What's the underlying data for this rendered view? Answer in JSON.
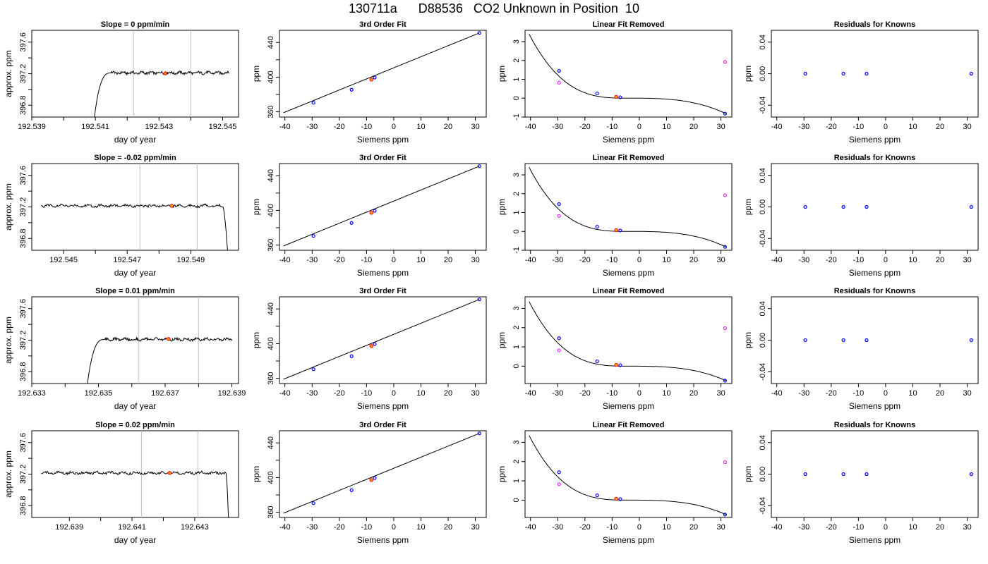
{
  "title": "130711a      D88536   CO2 Unknown in Position  10",
  "panel_titles": {
    "fit": "3rd Order Fit",
    "removed": "Linear Fit Removed",
    "residuals": "Residuals for Knowns"
  },
  "axis_labels": {
    "day_of_year": "day of year",
    "approx_ppm": "approx. ppm",
    "siemens_ppm": "Siemens ppm",
    "ppm": "ppm"
  },
  "colors": {
    "trace": "#000000",
    "gridline": "#bebebe",
    "standard_point": "#0000ff",
    "unknown_point": "#ff0000",
    "unknown_fill": "#ffa500",
    "pre_fit_point": "#ff00ff",
    "fit_curve": "#000000"
  },
  "chart_data": [
    {
      "type": "line",
      "row": 1,
      "title": "Slope =  0  ppm/min",
      "xlabel": "day of year",
      "ylabel": "approx. ppm",
      "xlim": [
        192.539,
        192.5455
      ],
      "ylim": [
        396.65,
        397.75
      ],
      "xticks": [
        "192.539",
        "192.541",
        "192.543",
        "192.545"
      ],
      "yticks": [
        "396.8",
        "397.2",
        "397.6"
      ],
      "vlines": [
        192.5422,
        192.544
      ],
      "marker": {
        "x": 192.5432,
        "y": 397.205
      },
      "trace": {
        "start": 192.5409,
        "end": 192.5452,
        "rise_end": 192.5415,
        "level": 397.21,
        "edge": "rise"
      }
    },
    {
      "type": "scatter",
      "row": 1,
      "title": "3rd Order Fit",
      "xlabel": "Siemens ppm",
      "ylabel": "ppm",
      "xlim": [
        -42,
        34
      ],
      "ylim": [
        354,
        454
      ],
      "xticks": [
        "-40",
        "-30",
        "-20",
        "-10",
        "0",
        "10",
        "20",
        "30"
      ],
      "yticks": [
        "360",
        "400",
        "440"
      ],
      "standards": [
        [
          -29.5,
          370.5
        ],
        [
          -15.5,
          385.5
        ],
        [
          -7,
          399.5
        ],
        [
          31.5,
          451
        ]
      ],
      "unknown": [
        -8.2,
        397.2
      ],
      "line": [
        [
          -40.5,
          359
        ],
        [
          31.5,
          451
        ]
      ]
    },
    {
      "type": "scatter",
      "row": 1,
      "title": "Linear Fit Removed",
      "xlabel": "Siemens ppm",
      "ylabel": "ppm",
      "xlim": [
        -42,
        34
      ],
      "ylim": [
        -1.0,
        3.6
      ],
      "xticks": [
        "-40",
        "-30",
        "-20",
        "-10",
        "0",
        "10",
        "20",
        "30"
      ],
      "yticks": [
        "-1",
        "0",
        "1",
        "2",
        "3"
      ],
      "standards": [
        [
          -29.5,
          1.45
        ],
        [
          -15.5,
          0.25
        ],
        [
          -7,
          0.05
        ],
        [
          31.5,
          -0.82
        ]
      ],
      "pre_fit": [
        [
          -29.5,
          0.82
        ],
        [
          31.5,
          1.92
        ]
      ],
      "unknown": [
        -8.5,
        0.07
      ],
      "curve": {
        "xmin": -40.5,
        "xmax": 31.8,
        "anchor": 3.4,
        "end": -0.82
      }
    },
    {
      "type": "scatter",
      "row": 1,
      "title": "Residuals for Knowns",
      "xlabel": "Siemens ppm",
      "ylabel": "ppm",
      "xlim": [
        -42,
        34
      ],
      "ylim": [
        -0.055,
        0.055
      ],
      "xticks": [
        "-40",
        "-30",
        "-20",
        "-10",
        "0",
        "10",
        "20",
        "30"
      ],
      "yticks": [
        "-0.04",
        "0.00",
        "0.04"
      ],
      "standards": [
        [
          -29.5,
          0
        ],
        [
          -15.5,
          0
        ],
        [
          -7,
          0
        ],
        [
          31.5,
          0
        ]
      ]
    },
    {
      "type": "line",
      "row": 2,
      "title": "Slope =  -0.02  ppm/min",
      "xlabel": "day of year",
      "ylabel": "approx. ppm",
      "xlim": [
        192.544,
        192.5505
      ],
      "ylim": [
        396.65,
        397.75
      ],
      "xticks": [
        "192.545",
        "192.547",
        "192.549"
      ],
      "yticks": [
        "396.8",
        "397.2",
        "397.6"
      ],
      "vlines": [
        192.5474,
        192.5492
      ],
      "marker": {
        "x": 192.5484,
        "y": 397.215
      },
      "trace": {
        "start": 192.5443,
        "end": 192.5502,
        "rise_end": 192.55,
        "level": 397.215,
        "edge": "fall"
      }
    },
    {
      "type": "scatter",
      "row": 2,
      "title": "3rd Order Fit",
      "xlabel": "Siemens ppm",
      "ylabel": "ppm",
      "xlim": [
        -42,
        34
      ],
      "ylim": [
        354,
        454
      ],
      "xticks": [
        "-40",
        "-30",
        "-20",
        "-10",
        "0",
        "10",
        "20",
        "30"
      ],
      "yticks": [
        "360",
        "400",
        "440"
      ],
      "standards": [
        [
          -29.5,
          370.5
        ],
        [
          -15.5,
          385.5
        ],
        [
          -7,
          399.5
        ],
        [
          31.5,
          451
        ]
      ],
      "unknown": [
        -8.2,
        397.2
      ],
      "line": [
        [
          -40.5,
          359
        ],
        [
          31.5,
          451
        ]
      ]
    },
    {
      "type": "scatter",
      "row": 2,
      "title": "Linear Fit Removed",
      "xlabel": "Siemens ppm",
      "ylabel": "ppm",
      "xlim": [
        -42,
        34
      ],
      "ylim": [
        -1.0,
        3.6
      ],
      "xticks": [
        "-40",
        "-30",
        "-20",
        "-10",
        "0",
        "10",
        "20",
        "30"
      ],
      "yticks": [
        "-1",
        "0",
        "1",
        "2",
        "3"
      ],
      "standards": [
        [
          -29.5,
          1.45
        ],
        [
          -15.5,
          0.25
        ],
        [
          -7,
          0.05
        ],
        [
          31.5,
          -0.82
        ]
      ],
      "pre_fit": [
        [
          -29.5,
          0.82
        ],
        [
          31.5,
          1.92
        ]
      ],
      "unknown": [
        -8.5,
        0.07
      ],
      "curve": {
        "xmin": -40.5,
        "xmax": 31.8,
        "anchor": 3.4,
        "end": -0.82
      }
    },
    {
      "type": "scatter",
      "row": 2,
      "title": "Residuals for Knowns",
      "xlabel": "Siemens ppm",
      "ylabel": "ppm",
      "xlim": [
        -42,
        34
      ],
      "ylim": [
        -0.055,
        0.055
      ],
      "xticks": [
        "-40",
        "-30",
        "-20",
        "-10",
        "0",
        "10",
        "20",
        "30"
      ],
      "yticks": [
        "-0.04",
        "0.00",
        "0.04"
      ],
      "standards": [
        [
          -29.5,
          0
        ],
        [
          -15.5,
          0
        ],
        [
          -7,
          0
        ],
        [
          31.5,
          0
        ]
      ]
    },
    {
      "type": "line",
      "row": 3,
      "title": "Slope =  0.01  ppm/min",
      "xlabel": "day of year",
      "ylabel": "approx. ppm",
      "xlim": [
        192.633,
        192.6392
      ],
      "ylim": [
        396.65,
        397.75
      ],
      "xticks": [
        "192.633",
        "192.635",
        "192.637",
        "192.639"
      ],
      "yticks": [
        "396.8",
        "397.2",
        "397.6"
      ],
      "vlines": [
        192.6362,
        192.638
      ],
      "marker": {
        "x": 192.6371,
        "y": 397.215
      },
      "trace": {
        "start": 192.6346,
        "end": 192.639,
        "rise_end": 192.6352,
        "level": 397.21,
        "edge": "rise"
      }
    },
    {
      "type": "scatter",
      "row": 3,
      "title": "3rd Order Fit",
      "xlabel": "Siemens ppm",
      "ylabel": "ppm",
      "xlim": [
        -42,
        34
      ],
      "ylim": [
        354,
        454
      ],
      "xticks": [
        "-40",
        "-30",
        "-20",
        "-10",
        "0",
        "10",
        "20",
        "30"
      ],
      "yticks": [
        "360",
        "400",
        "440"
      ],
      "standards": [
        [
          -29.5,
          370.5
        ],
        [
          -15.5,
          385.5
        ],
        [
          -7,
          399.5
        ],
        [
          31.5,
          451
        ]
      ],
      "unknown": [
        -8.2,
        397.2
      ],
      "line": [
        [
          -40.5,
          359
        ],
        [
          31.5,
          451
        ]
      ]
    },
    {
      "type": "scatter",
      "row": 3,
      "title": "Linear Fit Removed",
      "xlabel": "Siemens ppm",
      "ylabel": "ppm",
      "xlim": [
        -42,
        34
      ],
      "ylim": [
        -0.9,
        3.6
      ],
      "xticks": [
        "-40",
        "-30",
        "-20",
        "-10",
        "0",
        "10",
        "20",
        "30"
      ],
      "yticks": [
        "0",
        "1",
        "2",
        "3"
      ],
      "standards": [
        [
          -29.5,
          1.45
        ],
        [
          -15.5,
          0.25
        ],
        [
          -7,
          0.05
        ],
        [
          31.5,
          -0.75
        ]
      ],
      "pre_fit": [
        [
          -29.5,
          0.82
        ],
        [
          31.5,
          1.97
        ]
      ],
      "unknown": [
        -8.5,
        0.07
      ],
      "curve": {
        "xmin": -40.5,
        "xmax": 31.8,
        "anchor": 3.35,
        "end": -0.75
      }
    },
    {
      "type": "scatter",
      "row": 3,
      "title": "Residuals for Knowns",
      "xlabel": "Siemens ppm",
      "ylabel": "ppm",
      "xlim": [
        -42,
        34
      ],
      "ylim": [
        -0.055,
        0.055
      ],
      "xticks": [
        "-40",
        "-30",
        "-20",
        "-10",
        "0",
        "10",
        "20",
        "30"
      ],
      "yticks": [
        "-0.04",
        "0.00",
        "0.04"
      ],
      "standards": [
        [
          -29.5,
          0
        ],
        [
          -15.5,
          0
        ],
        [
          -7,
          0
        ],
        [
          31.5,
          0
        ]
      ]
    },
    {
      "type": "line",
      "row": 4,
      "title": "Slope =  0.02  ppm/min",
      "xlabel": "day of year",
      "ylabel": "approx. ppm",
      "xlim": [
        192.6378,
        192.6444
      ],
      "ylim": [
        396.65,
        397.75
      ],
      "xticks": [
        "192.639",
        "192.641",
        "192.643"
      ],
      "yticks": [
        "396.8",
        "397.2",
        "397.6"
      ],
      "vlines": [
        192.6413,
        192.6431
      ],
      "marker": {
        "x": 192.6422,
        "y": 397.215
      },
      "trace": {
        "start": 192.6381,
        "end": 192.6441,
        "rise_end": 192.644,
        "level": 397.215,
        "edge": "fall"
      }
    },
    {
      "type": "scatter",
      "row": 4,
      "title": "3rd Order Fit",
      "xlabel": "Siemens ppm",
      "ylabel": "ppm",
      "xlim": [
        -42,
        34
      ],
      "ylim": [
        354,
        454
      ],
      "xticks": [
        "-40",
        "-30",
        "-20",
        "-10",
        "0",
        "10",
        "20",
        "30"
      ],
      "yticks": [
        "360",
        "400",
        "440"
      ],
      "standards": [
        [
          -29.5,
          370.5
        ],
        [
          -15.5,
          385.5
        ],
        [
          -7,
          399.5
        ],
        [
          31.5,
          451
        ]
      ],
      "unknown": [
        -8.2,
        397.2
      ],
      "line": [
        [
          -40.5,
          359
        ],
        [
          31.5,
          451
        ]
      ]
    },
    {
      "type": "scatter",
      "row": 4,
      "title": "Linear Fit Removed",
      "xlabel": "Siemens ppm",
      "ylabel": "ppm",
      "xlim": [
        -42,
        34
      ],
      "ylim": [
        -0.9,
        3.6
      ],
      "xticks": [
        "-40",
        "-30",
        "-20",
        "-10",
        "0",
        "10",
        "20",
        "30"
      ],
      "yticks": [
        "0",
        "1",
        "2",
        "3"
      ],
      "standards": [
        [
          -29.5,
          1.45
        ],
        [
          -15.5,
          0.25
        ],
        [
          -7,
          0.05
        ],
        [
          31.5,
          -0.75
        ]
      ],
      "pre_fit": [
        [
          -29.5,
          0.82
        ],
        [
          31.5,
          1.97
        ]
      ],
      "unknown": [
        -8.5,
        0.07
      ],
      "curve": {
        "xmin": -40.5,
        "xmax": 31.8,
        "anchor": 3.35,
        "end": -0.75
      }
    },
    {
      "type": "scatter",
      "row": 4,
      "title": "Residuals for Knowns",
      "xlabel": "Siemens ppm",
      "ylabel": "ppm",
      "xlim": [
        -42,
        34
      ],
      "ylim": [
        -0.055,
        0.055
      ],
      "xticks": [
        "-40",
        "-30",
        "-20",
        "-10",
        "0",
        "10",
        "20",
        "30"
      ],
      "yticks": [
        "-0.04",
        "0.00",
        "0.04"
      ],
      "standards": [
        [
          -29.5,
          0
        ],
        [
          -15.5,
          0
        ],
        [
          -7,
          0
        ],
        [
          31.5,
          0
        ]
      ]
    }
  ]
}
